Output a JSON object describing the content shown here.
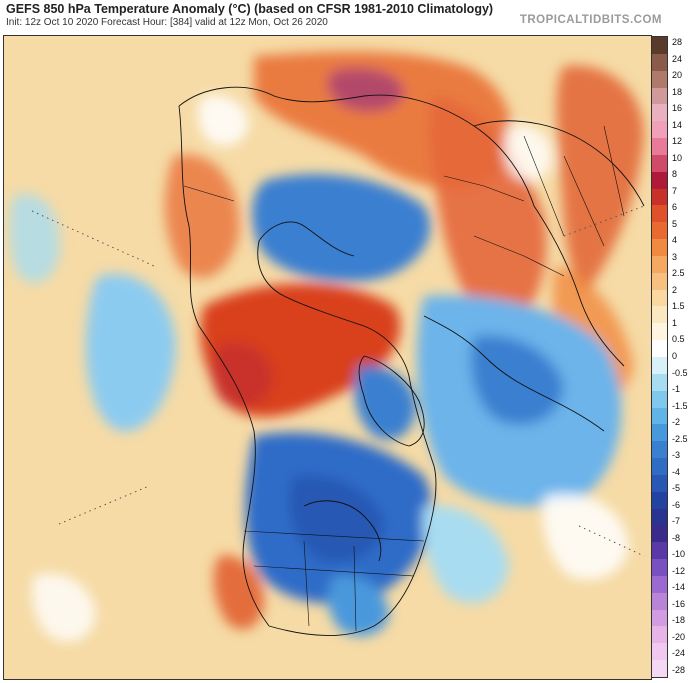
{
  "header": {
    "title": "GEFS 850 hPa Temperature Anomaly (°C) (based on CFSR 1981-2010 Climatology)",
    "subtitle": "Init: 12z Oct 10 2020   Forecast Hour: [384]   valid at 12z Mon, Oct 26 2020",
    "brand": "TROPICALTIDBITS.COM"
  },
  "map": {
    "projection": "north-polar-stereographic",
    "background_color": "#f6dba6",
    "anomaly_regions": [
      {
        "id": "siberia-hot",
        "color": "#e05a2c"
      },
      {
        "id": "siberia-core",
        "color": "#b34a6a"
      },
      {
        "id": "arctic-cold",
        "color": "#3a7fd0"
      },
      {
        "id": "canada-cold",
        "color": "#2f6cc8"
      },
      {
        "id": "alaska-hot",
        "color": "#d9401f"
      },
      {
        "id": "atlantic-cold",
        "color": "#6cb4ea"
      },
      {
        "id": "pacific-cold",
        "color": "#8ccbf0"
      },
      {
        "id": "east-asia-hot",
        "color": "#e4673a"
      }
    ]
  },
  "colorbar": {
    "labels": [
      "28",
      "24",
      "20",
      "18",
      "16",
      "14",
      "12",
      "10",
      "8",
      "7",
      "6",
      "5",
      "4",
      "3",
      "2.5",
      "2",
      "1.5",
      "1",
      "0.5",
      "0",
      "-0.5",
      "-1",
      "-1.5",
      "-2",
      "-2.5",
      "-3",
      "-4",
      "-5",
      "-6",
      "-7",
      "-8",
      "-10",
      "-12",
      "-14",
      "-16",
      "-18",
      "-20",
      "-24",
      "-28"
    ],
    "colors": [
      "#5a3a2a",
      "#8a5a4a",
      "#b07a6a",
      "#d09a9a",
      "#e8b0c0",
      "#f0a0b8",
      "#e87a9a",
      "#d04a6a",
      "#b01a3a",
      "#c8302a",
      "#e0502a",
      "#e86a30",
      "#f08a40",
      "#f4a860",
      "#f8c080",
      "#fad8a0",
      "#fce8c0",
      "#fef4e0",
      "#ffffff",
      "#d8f0f8",
      "#a8dcf0",
      "#80c8ec",
      "#60b4e6",
      "#4898dc",
      "#3a80d0",
      "#2f6cc4",
      "#2858b4",
      "#2244a0",
      "#2a3490",
      "#3a2a8a",
      "#5a38a8",
      "#7a50c0",
      "#9a6ad0",
      "#b884d8",
      "#d49ce0",
      "#e8b4e8",
      "#f0c8f0",
      "#f4d8f4"
    ]
  }
}
